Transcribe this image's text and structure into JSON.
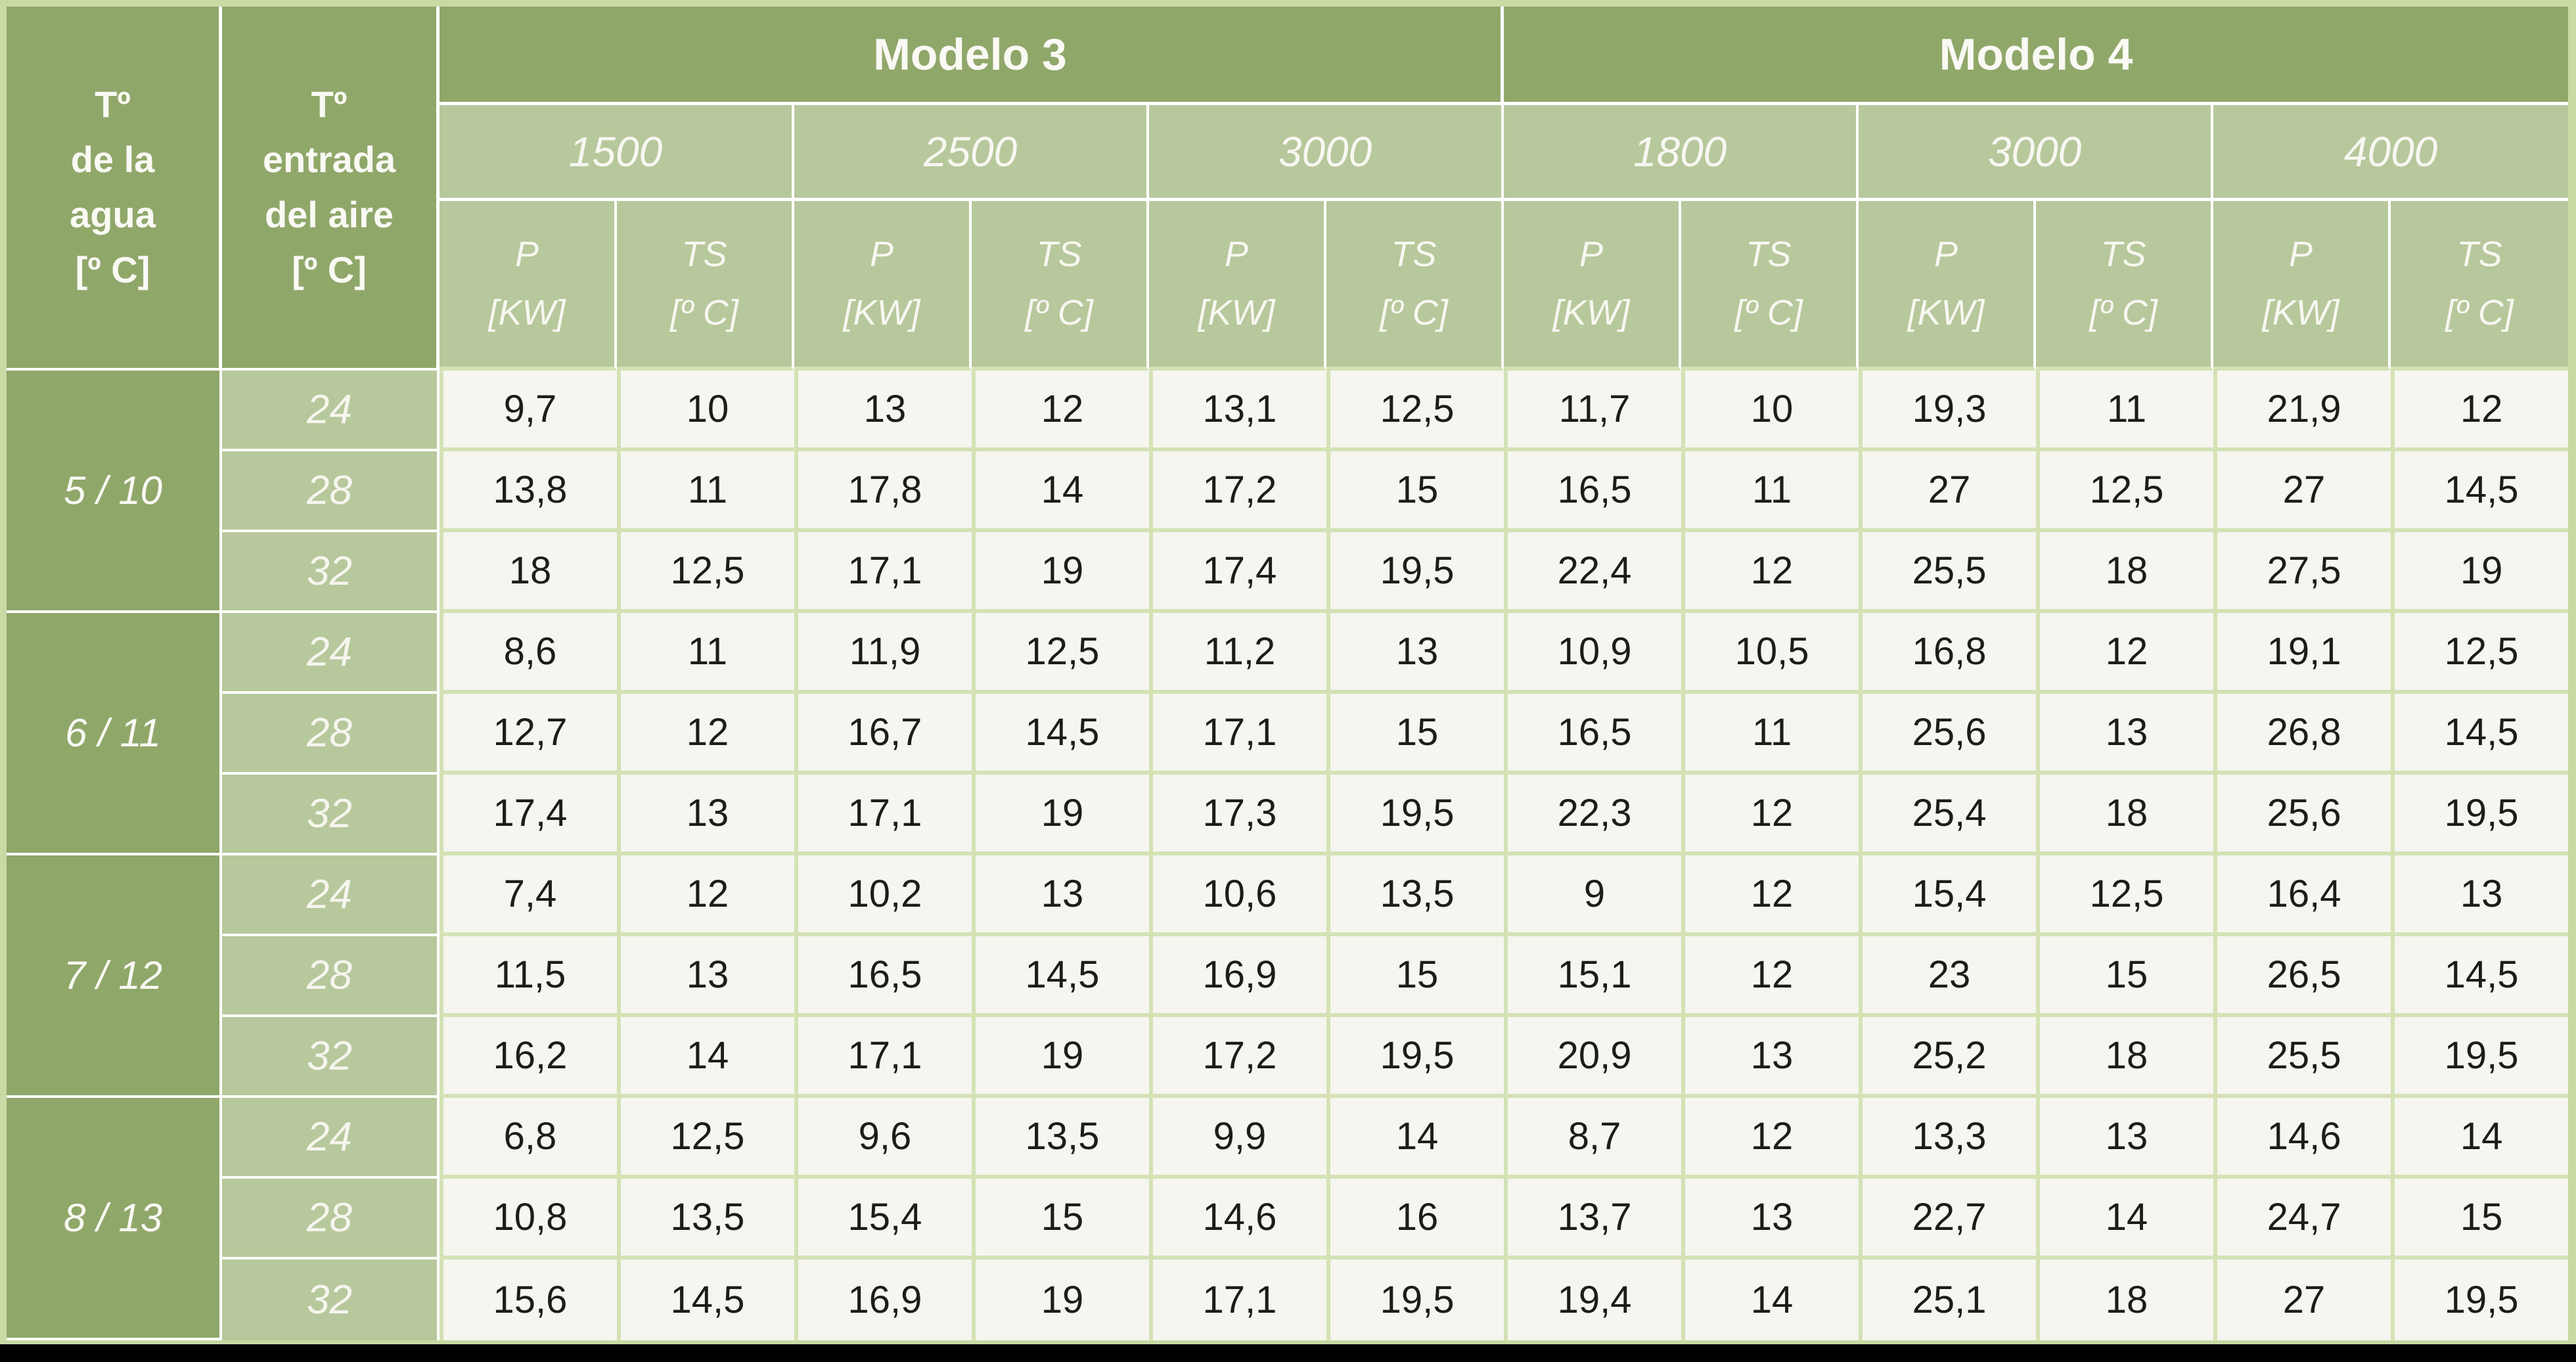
{
  "colors": {
    "header_dark_green": "#90a76a",
    "header_medium_green": "#b7c89c",
    "grid_light_green": "#d4e2b4",
    "cell_background": "#f6f5f0",
    "frame_background": "#c8dba4",
    "text_dark": "#1c1c1a",
    "text_white": "#faf9f4",
    "bottom_strip": "#000000"
  },
  "table": {
    "corner_headers": [
      {
        "label": "Tº\nde la\nagua\n[º C]"
      },
      {
        "label": "Tº\nentrada\ndel aire\n[º C]"
      }
    ],
    "models": [
      {
        "label": "Modelo 3",
        "sizes": [
          "1500",
          "2500",
          "3000"
        ]
      },
      {
        "label": "Modelo 4",
        "sizes": [
          "1800",
          "3000",
          "4000"
        ]
      }
    ],
    "measure_headers": {
      "p": "P\n[KW]",
      "ts": "TS\n[º C]"
    },
    "groups": [
      {
        "water_temp": "5 / 10",
        "rows": [
          {
            "air_temp": "24",
            "values": [
              "9,7",
              "10",
              "13",
              "12",
              "13,1",
              "12,5",
              "11,7",
              "10",
              "19,3",
              "11",
              "21,9",
              "12"
            ]
          },
          {
            "air_temp": "28",
            "values": [
              "13,8",
              "11",
              "17,8",
              "14",
              "17,2",
              "15",
              "16,5",
              "11",
              "27",
              "12,5",
              "27",
              "14,5"
            ]
          },
          {
            "air_temp": "32",
            "values": [
              "18",
              "12,5",
              "17,1",
              "19",
              "17,4",
              "19,5",
              "22,4",
              "12",
              "25,5",
              "18",
              "27,5",
              "19"
            ]
          }
        ]
      },
      {
        "water_temp": "6 / 11",
        "rows": [
          {
            "air_temp": "24",
            "values": [
              "8,6",
              "11",
              "11,9",
              "12,5",
              "11,2",
              "13",
              "10,9",
              "10,5",
              "16,8",
              "12",
              "19,1",
              "12,5"
            ]
          },
          {
            "air_temp": "28",
            "values": [
              "12,7",
              "12",
              "16,7",
              "14,5",
              "17,1",
              "15",
              "16,5",
              "11",
              "25,6",
              "13",
              "26,8",
              "14,5"
            ]
          },
          {
            "air_temp": "32",
            "values": [
              "17,4",
              "13",
              "17,1",
              "19",
              "17,3",
              "19,5",
              "22,3",
              "12",
              "25,4",
              "18",
              "25,6",
              "19,5"
            ]
          }
        ]
      },
      {
        "water_temp": "7 / 12",
        "rows": [
          {
            "air_temp": "24",
            "values": [
              "7,4",
              "12",
              "10,2",
              "13",
              "10,6",
              "13,5",
              "9",
              "12",
              "15,4",
              "12,5",
              "16,4",
              "13"
            ]
          },
          {
            "air_temp": "28",
            "values": [
              "11,5",
              "13",
              "16,5",
              "14,5",
              "16,9",
              "15",
              "15,1",
              "12",
              "23",
              "15",
              "26,5",
              "14,5"
            ]
          },
          {
            "air_temp": "32",
            "values": [
              "16,2",
              "14",
              "17,1",
              "19",
              "17,2",
              "19,5",
              "20,9",
              "13",
              "25,2",
              "18",
              "25,5",
              "19,5"
            ]
          }
        ]
      },
      {
        "water_temp": "8 / 13",
        "rows": [
          {
            "air_temp": "24",
            "values": [
              "6,8",
              "12,5",
              "9,6",
              "13,5",
              "9,9",
              "14",
              "8,7",
              "12",
              "13,3",
              "13",
              "14,6",
              "14"
            ]
          },
          {
            "air_temp": "28",
            "values": [
              "10,8",
              "13,5",
              "15,4",
              "15",
              "14,6",
              "16",
              "13,7",
              "13",
              "22,7",
              "14",
              "24,7",
              "15"
            ]
          },
          {
            "air_temp": "32",
            "values": [
              "15,6",
              "14,5",
              "16,9",
              "19",
              "17,1",
              "19,5",
              "19,4",
              "14",
              "25,1",
              "18",
              "27",
              "19,5"
            ]
          }
        ]
      }
    ]
  }
}
